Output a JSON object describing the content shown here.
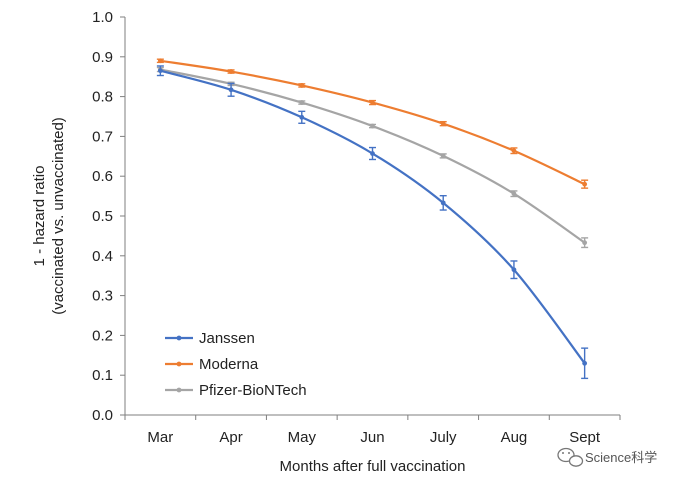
{
  "chart_data": {
    "type": "line",
    "categories": [
      "Mar",
      "Apr",
      "May",
      "Jun",
      "July",
      "Aug",
      "Sept"
    ],
    "xlabel": "Months after full vaccination",
    "ylabel_line1": "1 - hazard ratio",
    "ylabel_line2": "(vaccinated vs. unvaccinated)",
    "ylim": [
      0.0,
      1.0
    ],
    "yticks": [
      "0.0",
      "0.1",
      "0.2",
      "0.3",
      "0.4",
      "0.5",
      "0.6",
      "0.7",
      "0.8",
      "0.9",
      "1.0"
    ],
    "grid": false,
    "legend_position": "bottom-left",
    "series": [
      {
        "name": "Janssen",
        "color": "#4472c4",
        "values": [
          0.865,
          0.817,
          0.748,
          0.657,
          0.533,
          0.365,
          0.13
        ],
        "err": [
          0.012,
          0.016,
          0.015,
          0.015,
          0.018,
          0.022,
          0.038
        ]
      },
      {
        "name": "Moderna",
        "color": "#ed7d31",
        "values": [
          0.89,
          0.863,
          0.828,
          0.785,
          0.732,
          0.664,
          0.58
        ],
        "err": [
          0.004,
          0.004,
          0.004,
          0.005,
          0.005,
          0.007,
          0.01
        ]
      },
      {
        "name": "Pfizer-BioNTech",
        "color": "#a5a5a5",
        "values": [
          0.868,
          0.832,
          0.785,
          0.726,
          0.651,
          0.556,
          0.433
        ],
        "err": [
          0.005,
          0.004,
          0.004,
          0.004,
          0.005,
          0.007,
          0.012
        ]
      }
    ]
  },
  "watermark": {
    "text": "Science科学",
    "icon": "wechat-icon"
  }
}
